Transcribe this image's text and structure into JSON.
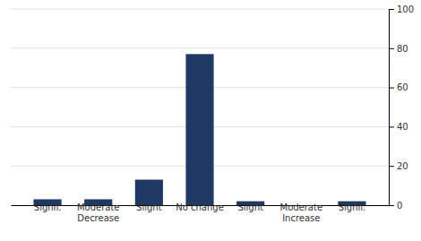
{
  "chart_data": {
    "type": "bar",
    "categories": [
      "Signif.",
      "Moderate\nDecrease",
      "Slight",
      "No change",
      "Slight",
      "Moderate\nIncrease",
      "Signif."
    ],
    "values": [
      3,
      3,
      13,
      77,
      2,
      0,
      2
    ],
    "color": "#1f3864",
    "ylim": [
      0,
      100
    ],
    "yticks": [
      0,
      20,
      40,
      60,
      80,
      100
    ],
    "grid": true
  }
}
